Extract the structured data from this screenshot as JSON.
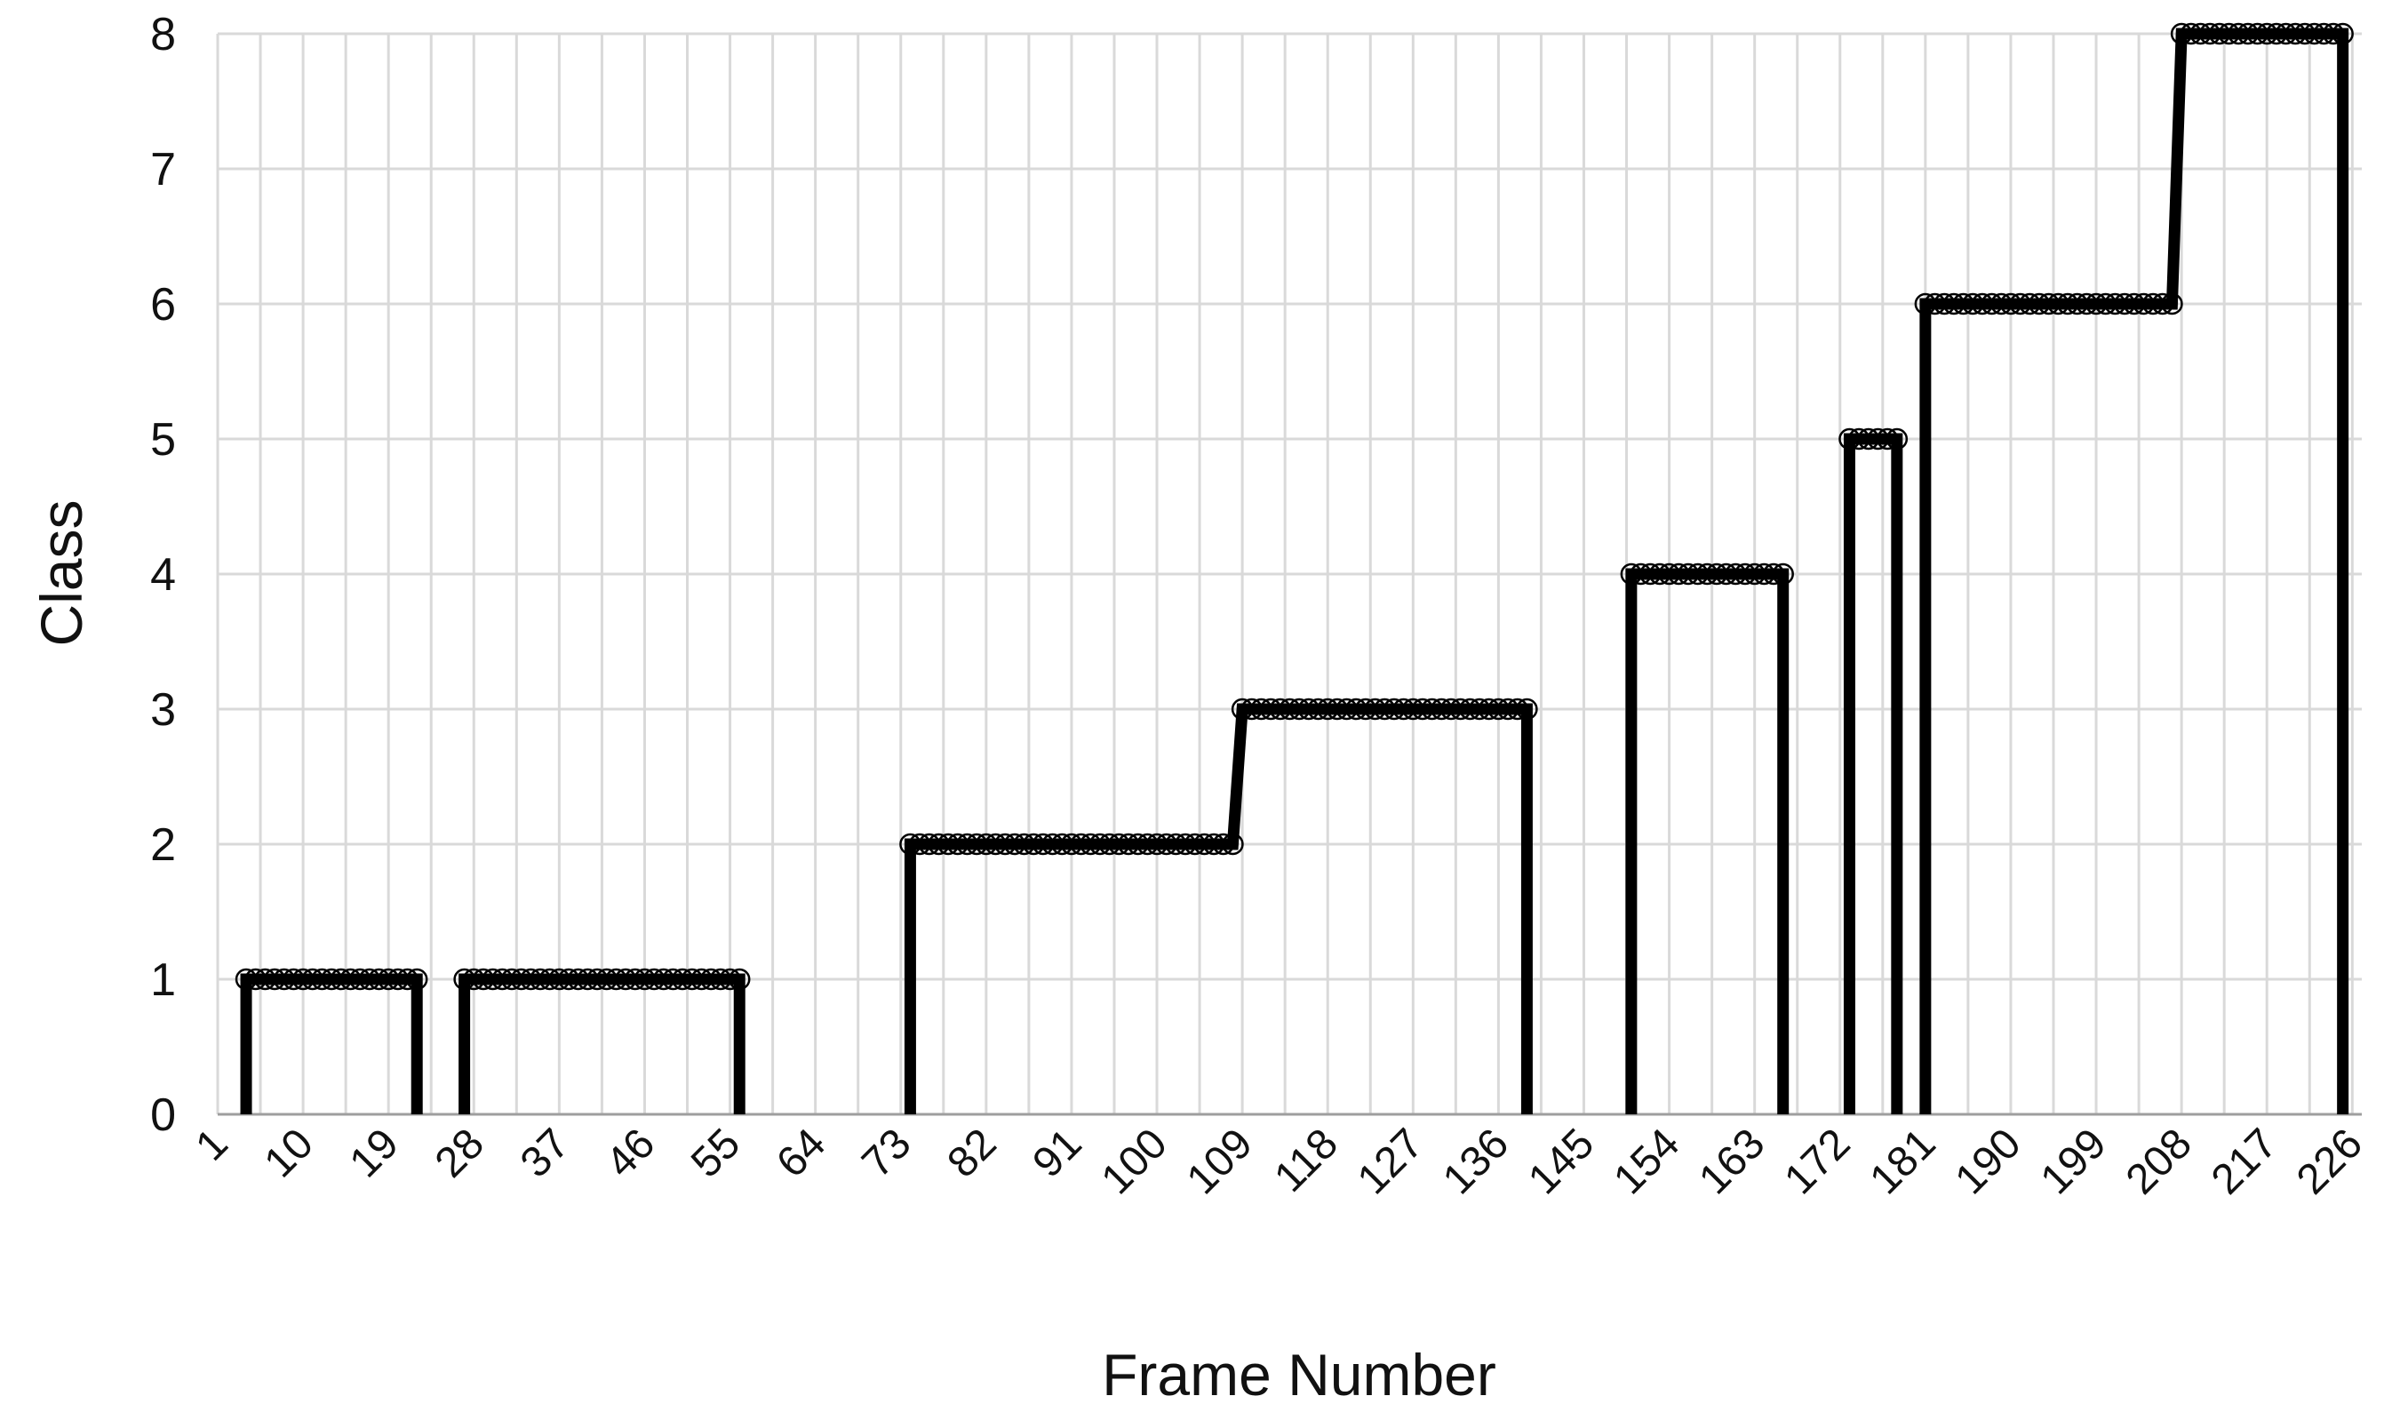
{
  "chart_data": {
    "type": "line",
    "xlabel": "Frame Number",
    "ylabel": "Class",
    "x_ticks": [
      "1",
      "10",
      "19",
      "28",
      "37",
      "46",
      "55",
      "64",
      "73",
      "82",
      "91",
      "100",
      "109",
      "118",
      "127",
      "136",
      "145",
      "154",
      "163",
      "172",
      "181",
      "190",
      "199",
      "208",
      "217",
      "226"
    ],
    "y_ticks": [
      "0",
      "1",
      "2",
      "3",
      "4",
      "5",
      "6",
      "7",
      "8"
    ],
    "xlim": [
      1,
      227
    ],
    "ylim": [
      0,
      8
    ],
    "grid": true,
    "legend": "none",
    "series": [
      {
        "color": "#000000",
        "marker": "open-circle",
        "segments": [
          {
            "x_start": 4,
            "x_end": 22,
            "value": 1
          },
          {
            "x_start": 27,
            "x_end": 56,
            "value": 1
          },
          {
            "x_start": 74,
            "x_end": 108,
            "value": 2
          },
          {
            "x_start": 109,
            "x_end": 139,
            "value": 3
          },
          {
            "x_start": 150,
            "x_end": 166,
            "value": 4
          },
          {
            "x_start": 173,
            "x_end": 178,
            "value": 5
          },
          {
            "x_start": 181,
            "x_end": 207,
            "value": 6
          },
          {
            "x_start": 208,
            "x_end": 225,
            "value": 8
          }
        ]
      }
    ]
  }
}
